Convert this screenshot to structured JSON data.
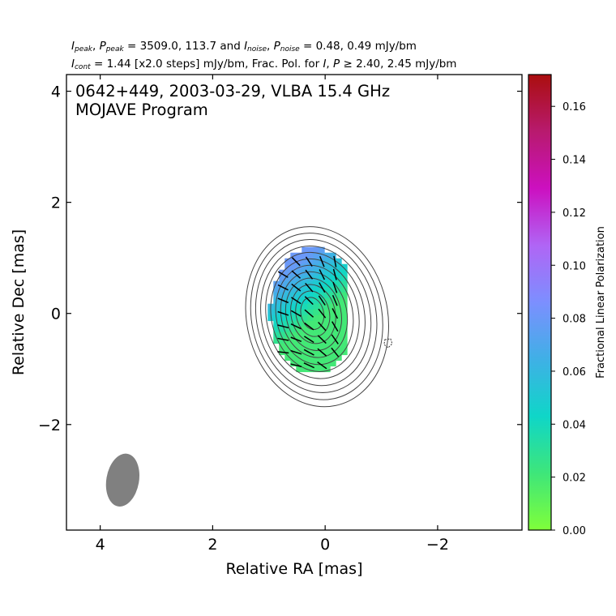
{
  "header": {
    "i_peak_label": "I",
    "i_peak_sub": "peak",
    "p_peak_label": "P",
    "p_peak_sub": "peak",
    "peak_values": "= 3509.0, 113.7 and",
    "i_noise_label": "I",
    "i_noise_sub": "noise",
    "p_noise_label": "P",
    "p_noise_sub": "noise",
    "noise_values": "= 0.48, 0.49 mJy/bm",
    "i_cont_label": "I",
    "i_cont_sub": "cont",
    "cont_text": "= 1.44 [x2.0 steps] mJy/bm, Frac. Pol. for",
    "frac_i": "I",
    "frac_p": "P",
    "frac_ge": "≥",
    "frac_values": "2.40, 2.45 mJy/bm"
  },
  "chart_data": {
    "type": "heatmap",
    "title": "0642+449, 2003-03-29, VLBA 15.4 GHz",
    "subtitle": "MOJAVE Program",
    "xlabel": "Relative RA [mas]",
    "ylabel": "Relative Dec [mas]",
    "xlim": [
      4.6,
      -3.5
    ],
    "ylim": [
      -3.9,
      4.3
    ],
    "xticks": [
      4,
      2,
      0,
      -2
    ],
    "xtick_labels": [
      "4",
      "2",
      "0",
      "−2"
    ],
    "yticks": [
      4,
      2,
      0,
      -2
    ],
    "ytick_labels": [
      "4",
      "2",
      "0",
      "−2"
    ],
    "colorbar": {
      "label": "Fractional Linear Polarization",
      "range": [
        0.0,
        0.172
      ],
      "ticks": [
        0.0,
        0.02,
        0.04,
        0.06,
        0.08,
        0.1,
        0.12,
        0.14,
        0.16
      ],
      "tick_labels": [
        "0.00",
        "0.02",
        "0.04",
        "0.06",
        "0.08",
        "0.10",
        "0.12",
        "0.14",
        "0.16"
      ],
      "colormap": [
        "#7fff3a",
        "#3ee67a",
        "#0fd6c8",
        "#3fb0e6",
        "#7c8fff",
        "#b065f5",
        "#cc10c0",
        "#b81a6e",
        "#aa0e0e"
      ]
    },
    "core": {
      "ra": 0.2,
      "dec": 0.0
    },
    "contours": {
      "base_mJy": 1.44,
      "step_factor": 2.0,
      "levels_count": 12,
      "color": "#444444"
    },
    "negative_contour": {
      "ra": -1.12,
      "dec": -0.53
    },
    "polarization_region": {
      "fraction_range": [
        0.02,
        0.08
      ],
      "gradient": "higher fraction toward north-east edge"
    },
    "evpa": {
      "color": "#000000",
      "description": "EVPA ticks across the core region"
    },
    "beam": {
      "ra": 3.6,
      "dec": -3.0,
      "major_mas": 0.95,
      "minor_mas": 0.58,
      "pa_deg": -10,
      "color": "#808080"
    }
  }
}
